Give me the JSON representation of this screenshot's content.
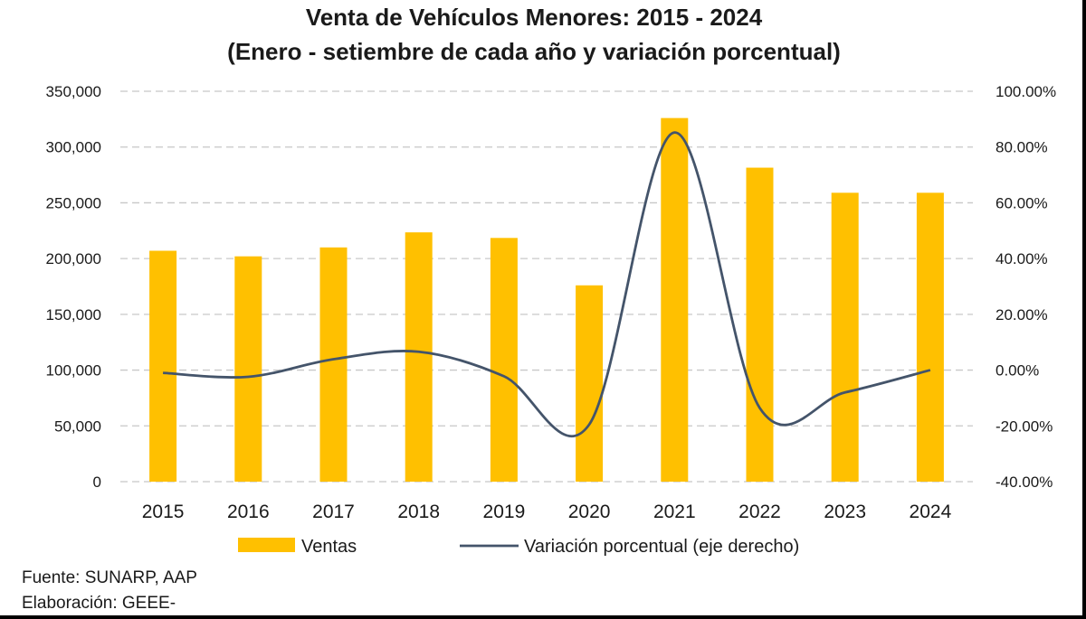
{
  "chart_data": {
    "type": "bar",
    "title": "Venta de Vehículos Menores: 2015 - 2024",
    "subtitle": "(Enero - setiembre de cada año y variación porcentual)",
    "categories": [
      "2015",
      "2016",
      "2017",
      "2018",
      "2019",
      "2020",
      "2021",
      "2022",
      "2023",
      "2024"
    ],
    "series": [
      {
        "name": "Ventas",
        "type": "bar",
        "axis": "left",
        "color": "#FFC000",
        "values": [
          207000,
          202000,
          210000,
          223500,
          218500,
          176000,
          326000,
          281500,
          259000,
          259000
        ]
      },
      {
        "name": "Variación porcentual (eje derecho)",
        "type": "line",
        "axis": "right",
        "color": "#44546A",
        "values": [
          -1.0,
          -2.4,
          3.9,
          6.6,
          -2.2,
          -19.5,
          85.2,
          -13.6,
          -8.0,
          0.0
        ]
      }
    ],
    "y_left": {
      "min": 0,
      "max": 350000,
      "step": 50000,
      "tick_labels": [
        "0",
        "50,000",
        "100,000",
        "150,000",
        "200,000",
        "250,000",
        "300,000",
        "350,000"
      ]
    },
    "y_right": {
      "min": -40,
      "max": 100,
      "step": 20,
      "tick_labels": [
        "-40.00%",
        "-20.00%",
        "0.00%",
        "20.00%",
        "40.00%",
        "60.00%",
        "80.00%",
        "100.00%"
      ]
    },
    "grid": true,
    "legend_position": "bottom"
  },
  "footer": {
    "source": "Fuente: SUNARP, AAP",
    "elaboration": "Elaboración: GEEE-"
  }
}
